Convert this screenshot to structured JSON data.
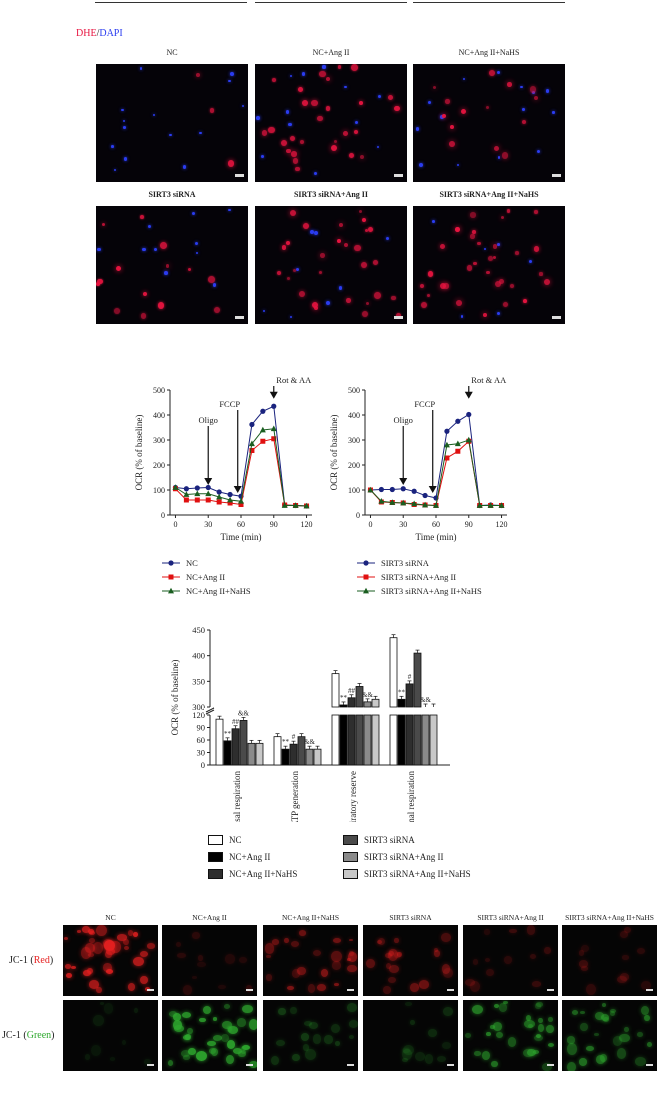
{
  "figure_label": {
    "dhe": "DHE",
    "sep": "/",
    "dapi": "DAPI"
  },
  "dhe_panels": [
    {
      "label": "NC",
      "bold": false,
      "red": 3,
      "blue": 14
    },
    {
      "label": "NC+Ang II",
      "bold": false,
      "red": 28,
      "blue": 12
    },
    {
      "label": "NC+Ang II+NaHS",
      "bold": false,
      "red": 14,
      "blue": 14
    },
    {
      "label": "SIRT3 siRNA",
      "bold": true,
      "red": 14,
      "blue": 10
    },
    {
      "label": "SIRT3 siRNA+Ang II",
      "bold": true,
      "red": 28,
      "blue": 8
    },
    {
      "label": "SIRT3 siRNA+Ang II+NaHS",
      "bold": true,
      "red": 32,
      "blue": 6
    }
  ],
  "colors": {
    "dhe_red": "#e81440",
    "dapi_blue": "#2a3cf0",
    "navy": "#1a237e",
    "red": "#e01010",
    "green": "#1a5e20",
    "jc1_red": "#e62020",
    "jc1_green": "#2ea82e"
  },
  "chart_data": [
    {
      "type": "line",
      "ylabel": "OCR (% of baseline)",
      "xlabel": "Time (min)",
      "ylim": [
        0,
        500
      ],
      "xlim": [
        -5,
        125
      ],
      "yticks": [
        "0",
        "100",
        "200",
        "300",
        "400",
        "500"
      ],
      "xticks": [
        "0",
        "30",
        "60",
        "90",
        "120"
      ],
      "annotations": [
        "Oligo",
        "FCCP",
        "Rot & AA"
      ],
      "x": [
        0,
        10,
        20,
        30,
        40,
        50,
        60,
        70,
        80,
        90,
        100,
        110,
        120
      ],
      "series": [
        {
          "name": "NC",
          "color": "#1a237e",
          "marker": "circle",
          "values": [
            110,
            105,
            108,
            110,
            92,
            82,
            75,
            362,
            415,
            435,
            40,
            38,
            36
          ]
        },
        {
          "name": "NC+Ang II",
          "color": "#e01010",
          "marker": "square",
          "values": [
            105,
            60,
            60,
            60,
            52,
            48,
            42,
            258,
            295,
            305,
            40,
            38,
            36
          ]
        },
        {
          "name": "NC+Ang II+NaHS",
          "color": "#1a5e20",
          "marker": "triangle",
          "values": [
            110,
            82,
            85,
            85,
            72,
            60,
            55,
            285,
            340,
            345,
            38,
            38,
            36
          ]
        }
      ]
    },
    {
      "type": "line",
      "ylabel": "OCR (% of baseline)",
      "xlabel": "Time (min)",
      "ylim": [
        0,
        500
      ],
      "xlim": [
        -5,
        125
      ],
      "yticks": [
        "0",
        "100",
        "200",
        "300",
        "400",
        "500"
      ],
      "xticks": [
        "0",
        "30",
        "60",
        "90",
        "120"
      ],
      "annotations": [
        "Oligo",
        "FCCP",
        "Rot & AA"
      ],
      "x": [
        0,
        10,
        20,
        30,
        40,
        50,
        60,
        70,
        80,
        90,
        100,
        110,
        120
      ],
      "series": [
        {
          "name": "SIRT3 siRNA",
          "color": "#1a237e",
          "marker": "circle",
          "values": [
            100,
            102,
            102,
            105,
            95,
            78,
            68,
            335,
            375,
            402,
            38,
            40,
            38
          ]
        },
        {
          "name": "SIRT3 siRNA+Ang II",
          "color": "#e01010",
          "marker": "square",
          "values": [
            100,
            52,
            50,
            48,
            42,
            40,
            38,
            228,
            255,
            295,
            38,
            38,
            38
          ]
        },
        {
          "name": "SIRT3 siRNA+Ang II+NaHS",
          "color": "#1a5e20",
          "marker": "triangle",
          "values": [
            100,
            55,
            50,
            48,
            45,
            40,
            38,
            280,
            285,
            300,
            38,
            38,
            38
          ]
        }
      ]
    },
    {
      "type": "bar",
      "ylabel": "OCR (% of baseline)",
      "yticks_low": [
        "0",
        "30",
        "60",
        "90",
        "120"
      ],
      "yticks_high": [
        "300",
        "350",
        "400",
        "450"
      ],
      "ybreak": [
        120,
        300
      ],
      "categories": [
        "Basal respiration",
        "ATP generation",
        "Respiratory reserve",
        "Maximal respiration"
      ],
      "series": [
        {
          "name": "NC",
          "fill": "#ffffff",
          "values": [
            110,
            68,
            365,
            435
          ]
        },
        {
          "name": "NC+Ang II",
          "fill": "#000000",
          "values": [
            58,
            38,
            304,
            315
          ]
        },
        {
          "name": "NC+Ang II+NaHS",
          "fill": "#2e2e2e",
          "values": [
            87,
            50,
            318,
            345
          ]
        },
        {
          "name": "SIRT3 siRNA",
          "fill": "#4a4a4a",
          "values": [
            107,
            68,
            340,
            405
          ]
        },
        {
          "name": "SIRT3 siRNA+Ang II",
          "fill": "#8a8a8a",
          "values": [
            52,
            38,
            310,
            300
          ]
        },
        {
          "name": "SIRT3 siRNA+Ang II+NaHS",
          "fill": "#c8c8c8",
          "values": [
            52,
            38,
            315,
            300
          ]
        }
      ],
      "significance": [
        {
          "category": 0,
          "series": 1,
          "mark": "**"
        },
        {
          "category": 0,
          "series": 2,
          "mark": "##"
        },
        {
          "category": 0,
          "series": 3,
          "mark": "&&"
        },
        {
          "category": 1,
          "series": 1,
          "mark": "**"
        },
        {
          "category": 1,
          "series": 2,
          "mark": "#"
        },
        {
          "category": 1,
          "series": 4,
          "mark": "&&"
        },
        {
          "category": 2,
          "series": 1,
          "mark": "**"
        },
        {
          "category": 2,
          "series": 2,
          "mark": "##"
        },
        {
          "category": 2,
          "series": 4,
          "mark": "&&"
        },
        {
          "category": 3,
          "series": 1,
          "mark": "**"
        },
        {
          "category": 3,
          "series": 2,
          "mark": "#"
        },
        {
          "category": 3,
          "series": 4,
          "mark": "&&"
        }
      ]
    }
  ],
  "bar_legend": [
    {
      "name": "NC",
      "fill": "#ffffff"
    },
    {
      "name": "NC+Ang II",
      "fill": "#000000"
    },
    {
      "name": "NC+Ang II+NaHS",
      "fill": "#2e2e2e"
    },
    {
      "name": "SIRT3 siRNA",
      "fill": "#4a4a4a"
    },
    {
      "name": "SIRT3 siRNA+Ang II",
      "fill": "#8a8a8a"
    },
    {
      "name": "SIRT3 siRNA+Ang II+NaHS",
      "fill": "#c8c8c8"
    }
  ],
  "jc1": {
    "columns": [
      "NC",
      "NC+Ang II",
      "NC+Ang II+NaHS",
      "SIRT3 siRNA",
      "SIRT3 siRNA+Ang II",
      "SIRT3 siRNA+Ang II+NaHS"
    ],
    "red_label_prefix": "JC-1 (",
    "red_label_word": "Red",
    "green_label_word": "Green",
    "label_suffix": ")",
    "red_intensity": [
      1.0,
      0.15,
      0.55,
      0.45,
      0.2,
      0.2
    ],
    "green_intensity": [
      0.1,
      1.0,
      0.35,
      0.2,
      0.75,
      0.65
    ]
  }
}
